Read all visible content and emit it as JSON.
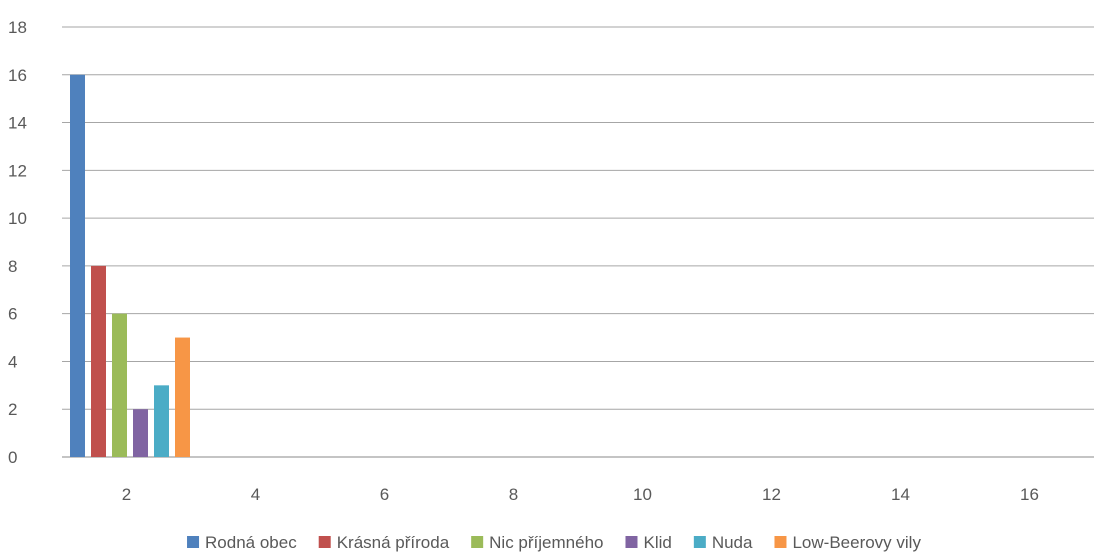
{
  "chart_data": {
    "type": "bar",
    "categories": [
      "2",
      "4",
      "6",
      "8",
      "10",
      "12",
      "14",
      "16"
    ],
    "series": [
      {
        "name": "Rodná obec",
        "color": "#4F81BD",
        "values": [
          16,
          null,
          null,
          null,
          null,
          null,
          null,
          null
        ]
      },
      {
        "name": "Krásná příroda",
        "color": "#C0504D",
        "values": [
          8,
          null,
          null,
          null,
          null,
          null,
          null,
          null
        ]
      },
      {
        "name": "Nic příjemného",
        "color": "#9BBB59",
        "values": [
          6,
          null,
          null,
          null,
          null,
          null,
          null,
          null
        ]
      },
      {
        "name": "Klid",
        "color": "#8064A2",
        "values": [
          2,
          null,
          null,
          null,
          null,
          null,
          null,
          null
        ]
      },
      {
        "name": "Nuda",
        "color": "#4BACC6",
        "values": [
          3,
          null,
          null,
          null,
          null,
          null,
          null,
          null
        ]
      },
      {
        "name": "Low-Beerovy vily",
        "color": "#F79646",
        "values": [
          5,
          null,
          null,
          null,
          null,
          null,
          null,
          null
        ]
      }
    ],
    "yticks": [
      "0",
      "2",
      "4",
      "6",
      "8",
      "10",
      "12",
      "14",
      "16",
      "18"
    ],
    "ylim": [
      0,
      18
    ],
    "grid": true,
    "legend_position": "bottom",
    "title": "",
    "xlabel": "",
    "ylabel": ""
  }
}
